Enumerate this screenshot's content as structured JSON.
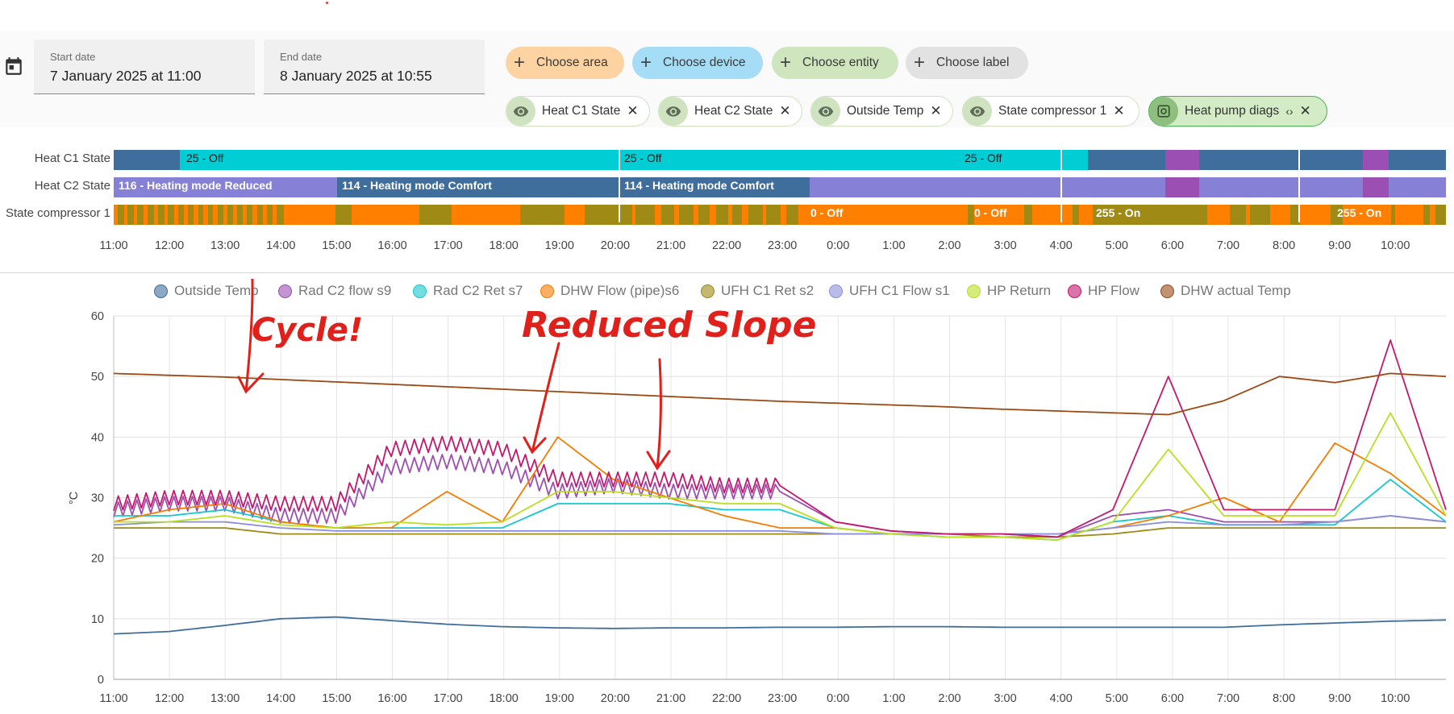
{
  "dates": {
    "start_label": "Start date",
    "start_value": "7 January 2025 at 11:00",
    "end_label": "End date",
    "end_value": "8 January 2025 at 10:55"
  },
  "pickers": [
    {
      "label": "Choose area",
      "color": "#fdd3a2"
    },
    {
      "label": "Choose device",
      "color": "#a6ddf6"
    },
    {
      "label": "Choose entity",
      "color": "#cfe5bd"
    },
    {
      "label": "Choose label",
      "color": "#e2e2e2"
    }
  ],
  "entities": [
    {
      "label": "Heat C1 State",
      "icon": "eye-icon"
    },
    {
      "label": "Heat C2 State",
      "icon": "eye-icon"
    },
    {
      "label": "Outside Temp",
      "icon": "eye-icon"
    },
    {
      "label": "State compressor 1",
      "icon": "eye-icon"
    },
    {
      "label": "Heat pump diags",
      "icon": "device-icon",
      "expand": "‹›"
    }
  ],
  "timeline": {
    "rows": [
      "Heat C1 State",
      "Heat C2 State",
      "State compressor 1"
    ],
    "segment_labels": {
      "c1": [
        "25 - Off",
        "25 - Off",
        "25 - Off"
      ],
      "c2": [
        "116 - Heating mode Reduced",
        "114 - Heating mode Comfort",
        "114 - Heating mode Comfort"
      ],
      "comp": [
        "0 - Off",
        "0 - Off",
        "255 - On",
        "255 - On"
      ]
    },
    "time_ticks": [
      "11:00",
      "12:00",
      "13:00",
      "14:00",
      "15:00",
      "16:00",
      "17:00",
      "18:00",
      "19:00",
      "20:00",
      "21:00",
      "22:00",
      "23:00",
      "0:00",
      "1:00",
      "2:00",
      "3:00",
      "4:00",
      "5:00",
      "6:00",
      "7:00",
      "8:00",
      "9:00",
      "10:00"
    ]
  },
  "legend": [
    {
      "name": "Outside Temp",
      "color": "#3e6e9e"
    },
    {
      "name": "Rad C2 flow s9",
      "color": "#9c4fb0"
    },
    {
      "name": "Rad C2 Ret s7",
      "color": "#15c7cf"
    },
    {
      "name": "DHW Flow (pipe)s6",
      "color": "#f57c00"
    },
    {
      "name": "UFH C1 Ret s2",
      "color": "#9e8a14"
    },
    {
      "name": "UFH C1 Flow s1",
      "color": "#8c8fd9"
    },
    {
      "name": "HP Return",
      "color": "#b8e020"
    },
    {
      "name": "HP Flow",
      "color": "#c2186e"
    },
    {
      "name": "DHW actual Temp",
      "color": "#9a4a14"
    }
  ],
  "annotations": [
    "Cycle!",
    "Reduced Slope"
  ],
  "chart_data": {
    "type": "line",
    "ylabel": "°C",
    "ylim": [
      0,
      60
    ],
    "y_ticks": [
      "0",
      "10",
      "20",
      "30",
      "40",
      "50",
      "60"
    ],
    "x": [
      "11:00",
      "12:00",
      "13:00",
      "14:00",
      "15:00",
      "16:00",
      "17:00",
      "18:00",
      "19:00",
      "20:00",
      "21:00",
      "22:00",
      "23:00",
      "0:00",
      "1:00",
      "2:00",
      "3:00",
      "4:00",
      "5:00",
      "6:00",
      "7:00",
      "8:00",
      "9:00",
      "10:00",
      "11:00"
    ],
    "series": [
      {
        "name": "Outside Temp",
        "values": [
          7.5,
          7.9,
          8.9,
          10.0,
          10.3,
          9.7,
          9.1,
          8.7,
          8.5,
          8.4,
          8.5,
          8.5,
          8.6,
          8.6,
          8.7,
          8.7,
          8.6,
          8.6,
          8.6,
          8.6,
          8.6,
          9.0,
          9.3,
          9.6,
          9.8
        ]
      },
      {
        "name": "Rad C2 flow s9",
        "values": [
          28,
          29,
          29,
          27,
          27,
          35,
          36,
          35,
          31,
          32,
          31,
          31,
          31,
          26,
          24.5,
          24,
          24,
          23.5,
          27,
          28,
          26,
          26,
          26,
          27,
          26
        ]
      },
      {
        "name": "Rad C2 Ret s7",
        "values": [
          27,
          27,
          28,
          26,
          25,
          25,
          25,
          25,
          29,
          29,
          29,
          28,
          28,
          25,
          24,
          23.5,
          23.5,
          23,
          26,
          27,
          25.5,
          25.5,
          25.5,
          33,
          26
        ]
      },
      {
        "name": "DHW Flow (pipe)s6",
        "values": [
          26,
          28,
          29,
          26,
          25,
          25,
          31,
          26,
          40,
          33,
          30,
          27,
          25,
          25,
          24,
          24,
          24,
          24,
          25,
          27,
          30,
          26,
          39,
          34,
          27
        ]
      },
      {
        "name": "UFH C1 Ret s2",
        "values": [
          25,
          25,
          25,
          24,
          24,
          24,
          24,
          24,
          24,
          24,
          24,
          24,
          24,
          24,
          24,
          24,
          23.5,
          23.5,
          24,
          25,
          25,
          25,
          25,
          25,
          25
        ]
      },
      {
        "name": "UFH C1 Flow s1",
        "values": [
          25.5,
          26,
          26,
          25,
          24.5,
          24.5,
          24.5,
          24.5,
          24.5,
          24.5,
          24.5,
          24.5,
          24.5,
          24,
          24,
          24,
          24,
          24,
          25,
          26,
          25.5,
          25.5,
          26,
          27,
          26
        ]
      },
      {
        "name": "HP Return",
        "values": [
          26,
          26,
          27,
          25.5,
          25,
          26,
          25.5,
          26,
          31,
          31,
          30,
          29,
          29,
          25,
          24,
          23.5,
          23.5,
          23,
          26,
          38,
          27,
          27,
          27,
          44,
          27
        ]
      },
      {
        "name": "HP Flow",
        "values": [
          29,
          30,
          30,
          29,
          29,
          38,
          39,
          38,
          33,
          33,
          33,
          32,
          32,
          26,
          24.5,
          24,
          24,
          23.5,
          28,
          50,
          28,
          28,
          28,
          56,
          28
        ]
      },
      {
        "name": "DHW actual Temp",
        "values": [
          50.5,
          50.2,
          49.9,
          49.5,
          49.1,
          48.7,
          48.3,
          47.9,
          47.5,
          47.1,
          46.7,
          46.3,
          45.9,
          45.6,
          45.3,
          45.0,
          44.6,
          44.3,
          44.0,
          43.7,
          46,
          50,
          49,
          50.5,
          50
        ]
      }
    ]
  }
}
